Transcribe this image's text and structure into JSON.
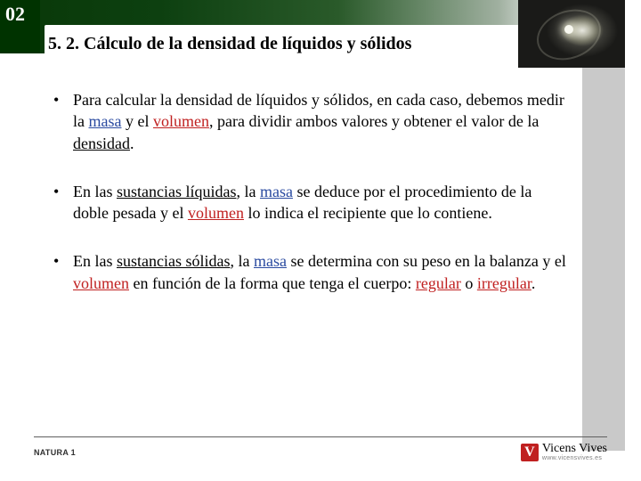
{
  "chapter_number": "02",
  "section_title": "5. 2. Cálculo de la densidad de líquidos y sólidos",
  "bullets": [
    {
      "pre": "Para calcular la densidad de líquidos y sólidos, en cada caso, debemos medir la ",
      "masa": "masa",
      "mid1": " y el ",
      "volumen": "volumen",
      "mid2": ", para dividir ambos valores y obtener el valor de la ",
      "densidad": "densidad",
      "post": "."
    },
    {
      "pre": "En las ",
      "sust": "sustancias líquidas",
      "mid1": ", la ",
      "masa": "masa",
      "mid2": " se deduce por el procedimiento de la doble pesada y el ",
      "volumen": "volumen",
      "post": " lo indica el recipiente que lo contiene."
    },
    {
      "pre": "En las ",
      "sust": "sustancias sólidas",
      "mid1": ", la ",
      "masa": "masa",
      "mid2": " se determina con su peso en la balanza y el ",
      "volumen": "volumen",
      "mid3": " en función de la forma que tenga el cuerpo: ",
      "reg": "regular",
      "mid4": " o ",
      "irreg": "irregular",
      "post": "."
    }
  ],
  "footer": {
    "left": "NATURA 1",
    "logo_letter": "V",
    "logo_name": "Vicens Vives",
    "logo_url": "www.vicensvives.es"
  },
  "colors": {
    "header_green": "#003300",
    "masa_blue": "#2a4aa0",
    "volumen_red": "#c02020",
    "logo_red": "#c02020",
    "right_col_gray": "#c9c9c9"
  }
}
